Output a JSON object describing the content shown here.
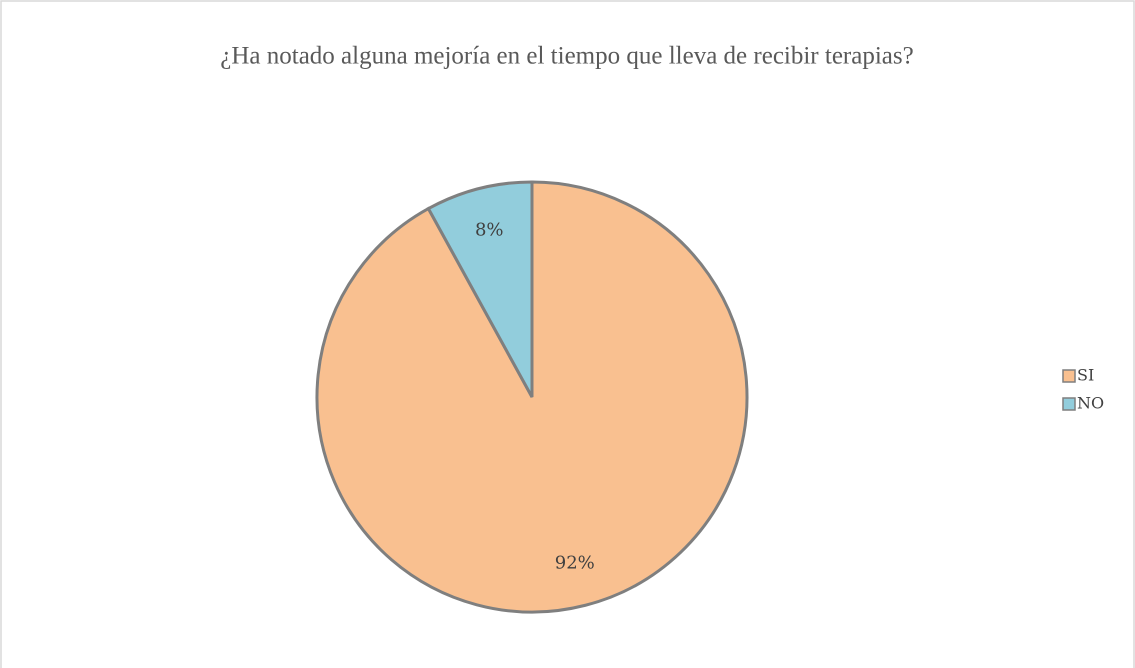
{
  "chart_data": {
    "type": "pie",
    "title": "¿Ha notado alguna mejoría en el tiempo que lleva de recibir terapias?",
    "categories": [
      "SI",
      "NO"
    ],
    "values": [
      92,
      8
    ],
    "value_labels": [
      "92%",
      "8%"
    ],
    "colors": [
      "#F9C090",
      "#92CDDC"
    ],
    "legend": "right"
  }
}
